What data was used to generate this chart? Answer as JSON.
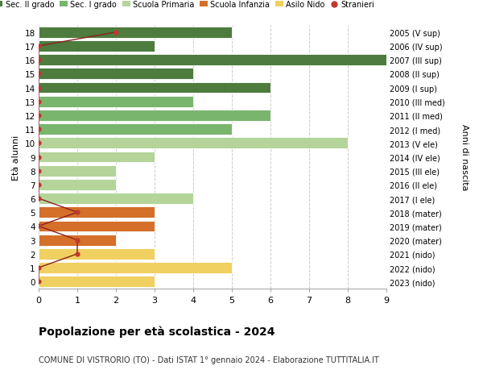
{
  "ages": [
    18,
    17,
    16,
    15,
    14,
    13,
    12,
    11,
    10,
    9,
    8,
    7,
    6,
    5,
    4,
    3,
    2,
    1,
    0
  ],
  "right_labels": [
    "2005 (V sup)",
    "2006 (IV sup)",
    "2007 (III sup)",
    "2008 (II sup)",
    "2009 (I sup)",
    "2010 (III med)",
    "2011 (II med)",
    "2012 (I med)",
    "2013 (V ele)",
    "2014 (IV ele)",
    "2015 (III ele)",
    "2016 (II ele)",
    "2017 (I ele)",
    "2018 (mater)",
    "2019 (mater)",
    "2020 (mater)",
    "2021 (nido)",
    "2022 (nido)",
    "2023 (nido)"
  ],
  "bar_values": [
    5,
    3,
    9,
    4,
    6,
    4,
    6,
    5,
    8,
    3,
    2,
    2,
    4,
    3,
    3,
    2,
    3,
    5,
    3
  ],
  "bar_colors": [
    "#4d7c3e",
    "#4d7c3e",
    "#4d7c3e",
    "#4d7c3e",
    "#4d7c3e",
    "#7ab56e",
    "#7ab56e",
    "#7ab56e",
    "#b5d49a",
    "#b5d49a",
    "#b5d49a",
    "#b5d49a",
    "#b5d49a",
    "#d4702a",
    "#d4702a",
    "#d4702a",
    "#f0d060",
    "#f0d060",
    "#f0d060"
  ],
  "stranieri_x": [
    2,
    0,
    0,
    0,
    0,
    0,
    0,
    0,
    0,
    0,
    0,
    0,
    0,
    1,
    0,
    1,
    1,
    0,
    0
  ],
  "legend_labels": [
    "Sec. II grado",
    "Sec. I grado",
    "Scuola Primaria",
    "Scuola Infanzia",
    "Asilo Nido",
    "Stranieri"
  ],
  "legend_colors": [
    "#4d7c3e",
    "#7ab56e",
    "#b5d49a",
    "#d4702a",
    "#f0d060",
    "#c0392b"
  ],
  "title": "Popolazione per età scolastica - 2024",
  "subtitle": "COMUNE DI VISTRORIO (TO) - Dati ISTAT 1° gennaio 2024 - Elaborazione TUTTITALIA.IT",
  "ylabel": "Età alunni",
  "ylabel2": "Anni di nascita",
  "xlim": [
    0,
    9
  ],
  "ylim_low": -0.5,
  "ylim_high": 18.5,
  "bar_height": 0.8,
  "bg_color": "#ffffff"
}
